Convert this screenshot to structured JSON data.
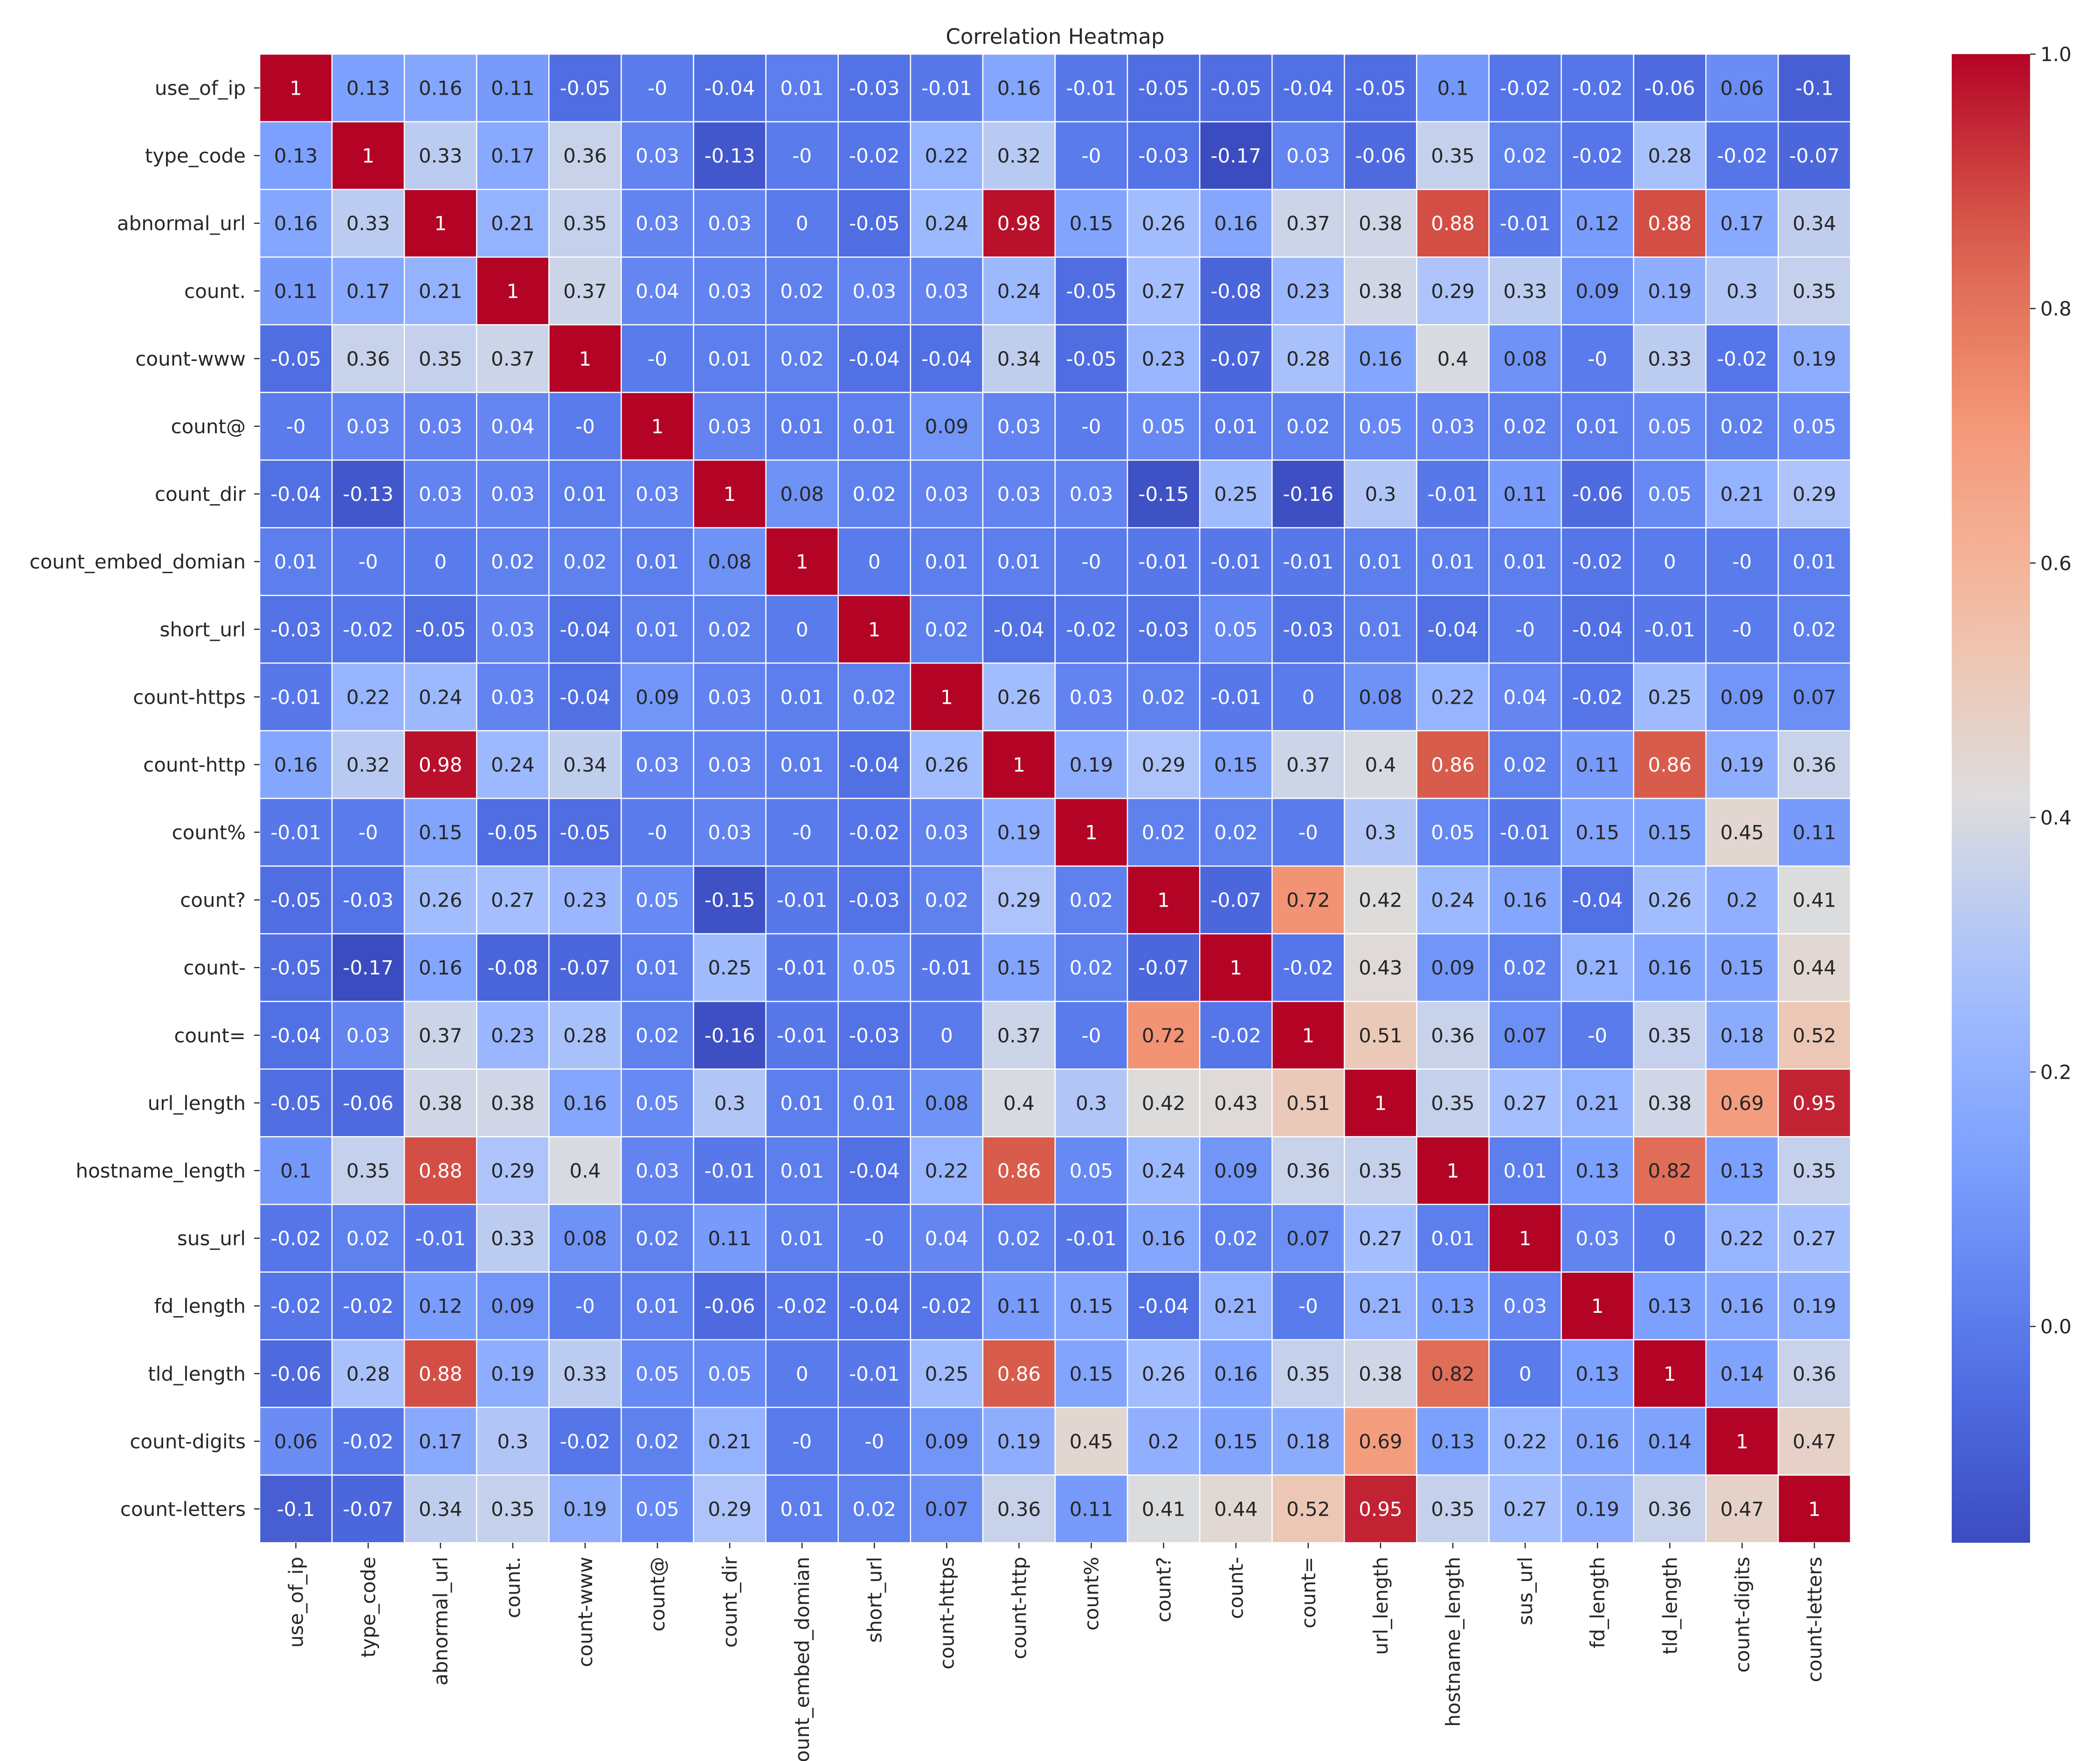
{
  "chart_data": {
    "type": "heatmap",
    "title": "Correlation Heatmap",
    "xlabel": "",
    "ylabel": "",
    "colormap": "coolwarm",
    "colorbar": {
      "vmin": -0.17,
      "vmax": 1.0,
      "ticks": [
        "0.0",
        "0.2",
        "0.4",
        "0.6",
        "0.8",
        "1.0"
      ]
    },
    "labels": [
      "use_of_ip",
      "type_code",
      "abnormal_url",
      "count.",
      "count-www",
      "count@",
      "count_dir",
      "count_embed_domian",
      "short_url",
      "count-https",
      "count-http",
      "count%",
      "count?",
      "count-",
      "count=",
      "url_length",
      "hostname_length",
      "sus_url",
      "fd_length",
      "tld_length",
      "count-digits",
      "count-letters"
    ],
    "cells": [
      [
        "1",
        "0.13",
        "0.16",
        "0.11",
        "-0.05",
        "-0",
        "-0.04",
        "0.01",
        "-0.03",
        "-0.01",
        "0.16",
        "-0.01",
        "-0.05",
        "-0.05",
        "-0.04",
        "-0.05",
        "0.1",
        "-0.02",
        "-0.02",
        "-0.06",
        "0.06",
        "-0.1"
      ],
      [
        "0.13",
        "1",
        "0.33",
        "0.17",
        "0.36",
        "0.03",
        "-0.13",
        "-0",
        "-0.02",
        "0.22",
        "0.32",
        "-0",
        "-0.03",
        "-0.17",
        "0.03",
        "-0.06",
        "0.35",
        "0.02",
        "-0.02",
        "0.28",
        "-0.02",
        "-0.07"
      ],
      [
        "0.16",
        "0.33",
        "1",
        "0.21",
        "0.35",
        "0.03",
        "0.03",
        "0",
        "-0.05",
        "0.24",
        "0.98",
        "0.15",
        "0.26",
        "0.16",
        "0.37",
        "0.38",
        "0.88",
        "-0.01",
        "0.12",
        "0.88",
        "0.17",
        "0.34"
      ],
      [
        "0.11",
        "0.17",
        "0.21",
        "1",
        "0.37",
        "0.04",
        "0.03",
        "0.02",
        "0.03",
        "0.03",
        "0.24",
        "-0.05",
        "0.27",
        "-0.08",
        "0.23",
        "0.38",
        "0.29",
        "0.33",
        "0.09",
        "0.19",
        "0.3",
        "0.35"
      ],
      [
        "-0.05",
        "0.36",
        "0.35",
        "0.37",
        "1",
        "-0",
        "0.01",
        "0.02",
        "-0.04",
        "-0.04",
        "0.34",
        "-0.05",
        "0.23",
        "-0.07",
        "0.28",
        "0.16",
        "0.4",
        "0.08",
        "-0",
        "0.33",
        "-0.02",
        "0.19"
      ],
      [
        "-0",
        "0.03",
        "0.03",
        "0.04",
        "-0",
        "1",
        "0.03",
        "0.01",
        "0.01",
        "0.09",
        "0.03",
        "-0",
        "0.05",
        "0.01",
        "0.02",
        "0.05",
        "0.03",
        "0.02",
        "0.01",
        "0.05",
        "0.02",
        "0.05"
      ],
      [
        "-0.04",
        "-0.13",
        "0.03",
        "0.03",
        "0.01",
        "0.03",
        "1",
        "0.08",
        "0.02",
        "0.03",
        "0.03",
        "0.03",
        "-0.15",
        "0.25",
        "-0.16",
        "0.3",
        "-0.01",
        "0.11",
        "-0.06",
        "0.05",
        "0.21",
        "0.29"
      ],
      [
        "0.01",
        "-0",
        "0",
        "0.02",
        "0.02",
        "0.01",
        "0.08",
        "1",
        "0",
        "0.01",
        "0.01",
        "-0",
        "-0.01",
        "-0.01",
        "-0.01",
        "0.01",
        "0.01",
        "0.01",
        "-0.02",
        "0",
        "-0",
        "0.01"
      ],
      [
        "-0.03",
        "-0.02",
        "-0.05",
        "0.03",
        "-0.04",
        "0.01",
        "0.02",
        "0",
        "1",
        "0.02",
        "-0.04",
        "-0.02",
        "-0.03",
        "0.05",
        "-0.03",
        "0.01",
        "-0.04",
        "-0",
        "-0.04",
        "-0.01",
        "-0",
        "0.02"
      ],
      [
        "-0.01",
        "0.22",
        "0.24",
        "0.03",
        "-0.04",
        "0.09",
        "0.03",
        "0.01",
        "0.02",
        "1",
        "0.26",
        "0.03",
        "0.02",
        "-0.01",
        "0",
        "0.08",
        "0.22",
        "0.04",
        "-0.02",
        "0.25",
        "0.09",
        "0.07"
      ],
      [
        "0.16",
        "0.32",
        "0.98",
        "0.24",
        "0.34",
        "0.03",
        "0.03",
        "0.01",
        "-0.04",
        "0.26",
        "1",
        "0.19",
        "0.29",
        "0.15",
        "0.37",
        "0.4",
        "0.86",
        "0.02",
        "0.11",
        "0.86",
        "0.19",
        "0.36"
      ],
      [
        "-0.01",
        "-0",
        "0.15",
        "-0.05",
        "-0.05",
        "-0",
        "0.03",
        "-0",
        "-0.02",
        "0.03",
        "0.19",
        "1",
        "0.02",
        "0.02",
        "-0",
        "0.3",
        "0.05",
        "-0.01",
        "0.15",
        "0.15",
        "0.45",
        "0.11"
      ],
      [
        "-0.05",
        "-0.03",
        "0.26",
        "0.27",
        "0.23",
        "0.05",
        "-0.15",
        "-0.01",
        "-0.03",
        "0.02",
        "0.29",
        "0.02",
        "1",
        "-0.07",
        "0.72",
        "0.42",
        "0.24",
        "0.16",
        "-0.04",
        "0.26",
        "0.2",
        "0.41"
      ],
      [
        "-0.05",
        "-0.17",
        "0.16",
        "-0.08",
        "-0.07",
        "0.01",
        "0.25",
        "-0.01",
        "0.05",
        "-0.01",
        "0.15",
        "0.02",
        "-0.07",
        "1",
        "-0.02",
        "0.43",
        "0.09",
        "0.02",
        "0.21",
        "0.16",
        "0.15",
        "0.44"
      ],
      [
        "-0.04",
        "0.03",
        "0.37",
        "0.23",
        "0.28",
        "0.02",
        "-0.16",
        "-0.01",
        "-0.03",
        "0",
        "0.37",
        "-0",
        "0.72",
        "-0.02",
        "1",
        "0.51",
        "0.36",
        "0.07",
        "-0",
        "0.35",
        "0.18",
        "0.52"
      ],
      [
        "-0.05",
        "-0.06",
        "0.38",
        "0.38",
        "0.16",
        "0.05",
        "0.3",
        "0.01",
        "0.01",
        "0.08",
        "0.4",
        "0.3",
        "0.42",
        "0.43",
        "0.51",
        "1",
        "0.35",
        "0.27",
        "0.21",
        "0.38",
        "0.69",
        "0.95"
      ],
      [
        "0.1",
        "0.35",
        "0.88",
        "0.29",
        "0.4",
        "0.03",
        "-0.01",
        "0.01",
        "-0.04",
        "0.22",
        "0.86",
        "0.05",
        "0.24",
        "0.09",
        "0.36",
        "0.35",
        "1",
        "0.01",
        "0.13",
        "0.82",
        "0.13",
        "0.35"
      ],
      [
        "-0.02",
        "0.02",
        "-0.01",
        "0.33",
        "0.08",
        "0.02",
        "0.11",
        "0.01",
        "-0",
        "0.04",
        "0.02",
        "-0.01",
        "0.16",
        "0.02",
        "0.07",
        "0.27",
        "0.01",
        "1",
        "0.03",
        "0",
        "0.22",
        "0.27"
      ],
      [
        "-0.02",
        "-0.02",
        "0.12",
        "0.09",
        "-0",
        "0.01",
        "-0.06",
        "-0.02",
        "-0.04",
        "-0.02",
        "0.11",
        "0.15",
        "-0.04",
        "0.21",
        "-0",
        "0.21",
        "0.13",
        "0.03",
        "1",
        "0.13",
        "0.16",
        "0.19"
      ],
      [
        "-0.06",
        "0.28",
        "0.88",
        "0.19",
        "0.33",
        "0.05",
        "0.05",
        "0",
        "-0.01",
        "0.25",
        "0.86",
        "0.15",
        "0.26",
        "0.16",
        "0.35",
        "0.38",
        "0.82",
        "0",
        "0.13",
        "1",
        "0.14",
        "0.36"
      ],
      [
        "0.06",
        "-0.02",
        "0.17",
        "0.3",
        "-0.02",
        "0.02",
        "0.21",
        "-0",
        "-0",
        "0.09",
        "0.19",
        "0.45",
        "0.2",
        "0.15",
        "0.18",
        "0.69",
        "0.13",
        "0.22",
        "0.16",
        "0.14",
        "1",
        "0.47"
      ],
      [
        "-0.1",
        "-0.07",
        "0.34",
        "0.35",
        "0.19",
        "0.05",
        "0.29",
        "0.01",
        "0.02",
        "0.07",
        "0.36",
        "0.11",
        "0.41",
        "0.44",
        "0.52",
        "0.95",
        "0.35",
        "0.27",
        "0.19",
        "0.36",
        "0.47",
        "1"
      ]
    ]
  }
}
